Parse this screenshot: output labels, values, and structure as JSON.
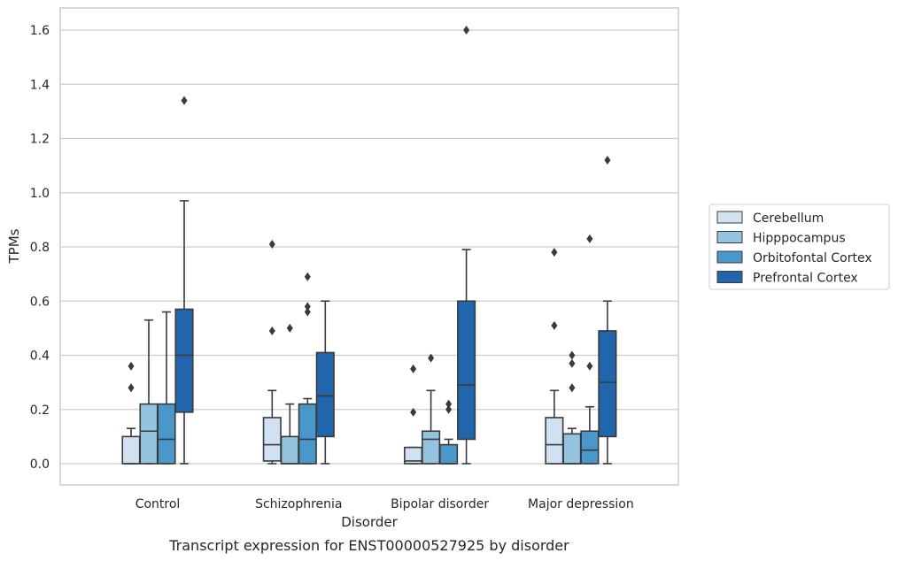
{
  "chart_data": {
    "type": "box",
    "caption": "Transcript expression for ENST00000527925 by disorder",
    "xlabel": "Disorder",
    "ylabel": "TPMs",
    "ylim": [
      -0.08,
      1.68
    ],
    "yticks": [
      0.0,
      0.2,
      0.4,
      0.6,
      0.8,
      1.0,
      1.2,
      1.4,
      1.6
    ],
    "ytick_labels": [
      "0.0",
      "0.2",
      "0.4",
      "0.6",
      "0.8",
      "1.0",
      "1.2",
      "1.4",
      "1.6"
    ],
    "grid": "horizontal",
    "legend_position": "right",
    "categories": [
      "Control",
      "Schizophrenia",
      "Bipolar disorder",
      "Major depression"
    ],
    "series": [
      {
        "name": "Cerebellum",
        "color": "#d0e1f2",
        "boxes": [
          {
            "whisker_low": 0.0,
            "q1": 0.0,
            "median": 0.0,
            "q3": 0.1,
            "whisker_high": 0.13,
            "outliers": [
              0.28,
              0.36
            ]
          },
          {
            "whisker_low": 0.0,
            "q1": 0.01,
            "median": 0.07,
            "q3": 0.17,
            "whisker_high": 0.27,
            "outliers": [
              0.49,
              0.81
            ]
          },
          {
            "whisker_low": 0.0,
            "q1": 0.0,
            "median": 0.01,
            "q3": 0.06,
            "whisker_high": 0.06,
            "outliers": [
              0.19,
              0.35
            ]
          },
          {
            "whisker_low": 0.0,
            "q1": 0.0,
            "median": 0.07,
            "q3": 0.17,
            "whisker_high": 0.27,
            "outliers": [
              0.51,
              0.78
            ]
          }
        ]
      },
      {
        "name": "Hipppocampus",
        "color": "#94c4df",
        "boxes": [
          {
            "whisker_low": 0.0,
            "q1": 0.0,
            "median": 0.12,
            "q3": 0.22,
            "whisker_high": 0.53,
            "outliers": []
          },
          {
            "whisker_low": 0.0,
            "q1": 0.0,
            "median": 0.0,
            "q3": 0.1,
            "whisker_high": 0.22,
            "outliers": [
              0.5
            ]
          },
          {
            "whisker_low": 0.0,
            "q1": 0.0,
            "median": 0.09,
            "q3": 0.12,
            "whisker_high": 0.27,
            "outliers": [
              0.39
            ]
          },
          {
            "whisker_low": 0.0,
            "q1": 0.0,
            "median": 0.0,
            "q3": 0.11,
            "whisker_high": 0.13,
            "outliers": [
              0.28,
              0.37,
              0.4
            ]
          }
        ]
      },
      {
        "name": "Orbitofontal Cortex",
        "color": "#4a98c9",
        "boxes": [
          {
            "whisker_low": 0.0,
            "q1": 0.0,
            "median": 0.09,
            "q3": 0.22,
            "whisker_high": 0.56,
            "outliers": []
          },
          {
            "whisker_low": 0.0,
            "q1": 0.0,
            "median": 0.09,
            "q3": 0.22,
            "whisker_high": 0.24,
            "outliers": [
              0.56,
              0.58,
              0.69
            ]
          },
          {
            "whisker_low": 0.0,
            "q1": 0.0,
            "median": 0.0,
            "q3": 0.07,
            "whisker_high": 0.09,
            "outliers": [
              0.2,
              0.22
            ]
          },
          {
            "whisker_low": 0.0,
            "q1": 0.0,
            "median": 0.05,
            "q3": 0.12,
            "whisker_high": 0.21,
            "outliers": [
              0.36,
              0.83
            ]
          }
        ]
      },
      {
        "name": "Prefrontal Cortex",
        "color": "#2166ac",
        "boxes": [
          {
            "whisker_low": 0.0,
            "q1": 0.19,
            "median": 0.4,
            "q3": 0.57,
            "whisker_high": 0.97,
            "outliers": [
              1.34
            ]
          },
          {
            "whisker_low": 0.0,
            "q1": 0.1,
            "median": 0.25,
            "q3": 0.41,
            "whisker_high": 0.6,
            "outliers": []
          },
          {
            "whisker_low": 0.0,
            "q1": 0.09,
            "median": 0.29,
            "q3": 0.6,
            "whisker_high": 0.79,
            "outliers": [
              1.6
            ]
          },
          {
            "whisker_low": 0.0,
            "q1": 0.1,
            "median": 0.3,
            "q3": 0.49,
            "whisker_high": 0.6,
            "outliers": [
              1.12
            ]
          }
        ]
      }
    ]
  }
}
